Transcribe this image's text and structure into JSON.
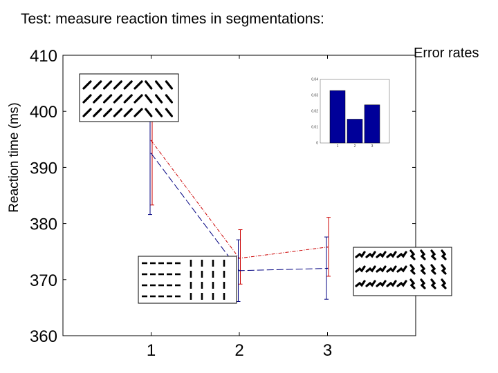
{
  "slide": {
    "title": "Test: measure reaction times in segmentations:"
  },
  "chart_data": [
    {
      "type": "line",
      "title": "",
      "xlabel": "",
      "ylabel": "Reaction time (ms)",
      "x": [
        1,
        2,
        3
      ],
      "xticks": [
        "1",
        "2",
        "3"
      ],
      "yticks": [
        "360",
        "370",
        "380",
        "390",
        "400",
        "410"
      ],
      "xlim": [
        0,
        4
      ],
      "ylim": [
        360,
        410
      ],
      "grid": false,
      "series": [
        {
          "color": "#cc0000",
          "dash": "dash-dot",
          "values": [
            394.8,
            373.8,
            375.8
          ],
          "error_low": [
            383.3,
            369.2,
            370.6
          ],
          "error_high": [
            406.3,
            378.9,
            381.1
          ]
        },
        {
          "color": "#000080",
          "dash": "dash",
          "values": [
            392.5,
            371.6,
            372.0
          ],
          "error_low": [
            381.6,
            366.1,
            366.5
          ],
          "error_high": [
            403.4,
            377.1,
            377.6
          ]
        }
      ]
    },
    {
      "type": "bar",
      "title": "Error rates",
      "categories": [
        "1",
        "2",
        "3"
      ],
      "values": [
        0.033,
        0.015,
        0.024
      ],
      "yticks": [
        "0",
        "0.01",
        "0.02",
        "0.03",
        "0.04"
      ],
      "ylim": [
        0,
        0.04
      ],
      "color": "#000099"
    }
  ],
  "stimuli": [
    {
      "icon": "oblique-lines-texture-icon"
    },
    {
      "icon": "horizontal-vertical-dashes-texture-icon"
    },
    {
      "icon": "bent-elements-texture-icon"
    }
  ]
}
